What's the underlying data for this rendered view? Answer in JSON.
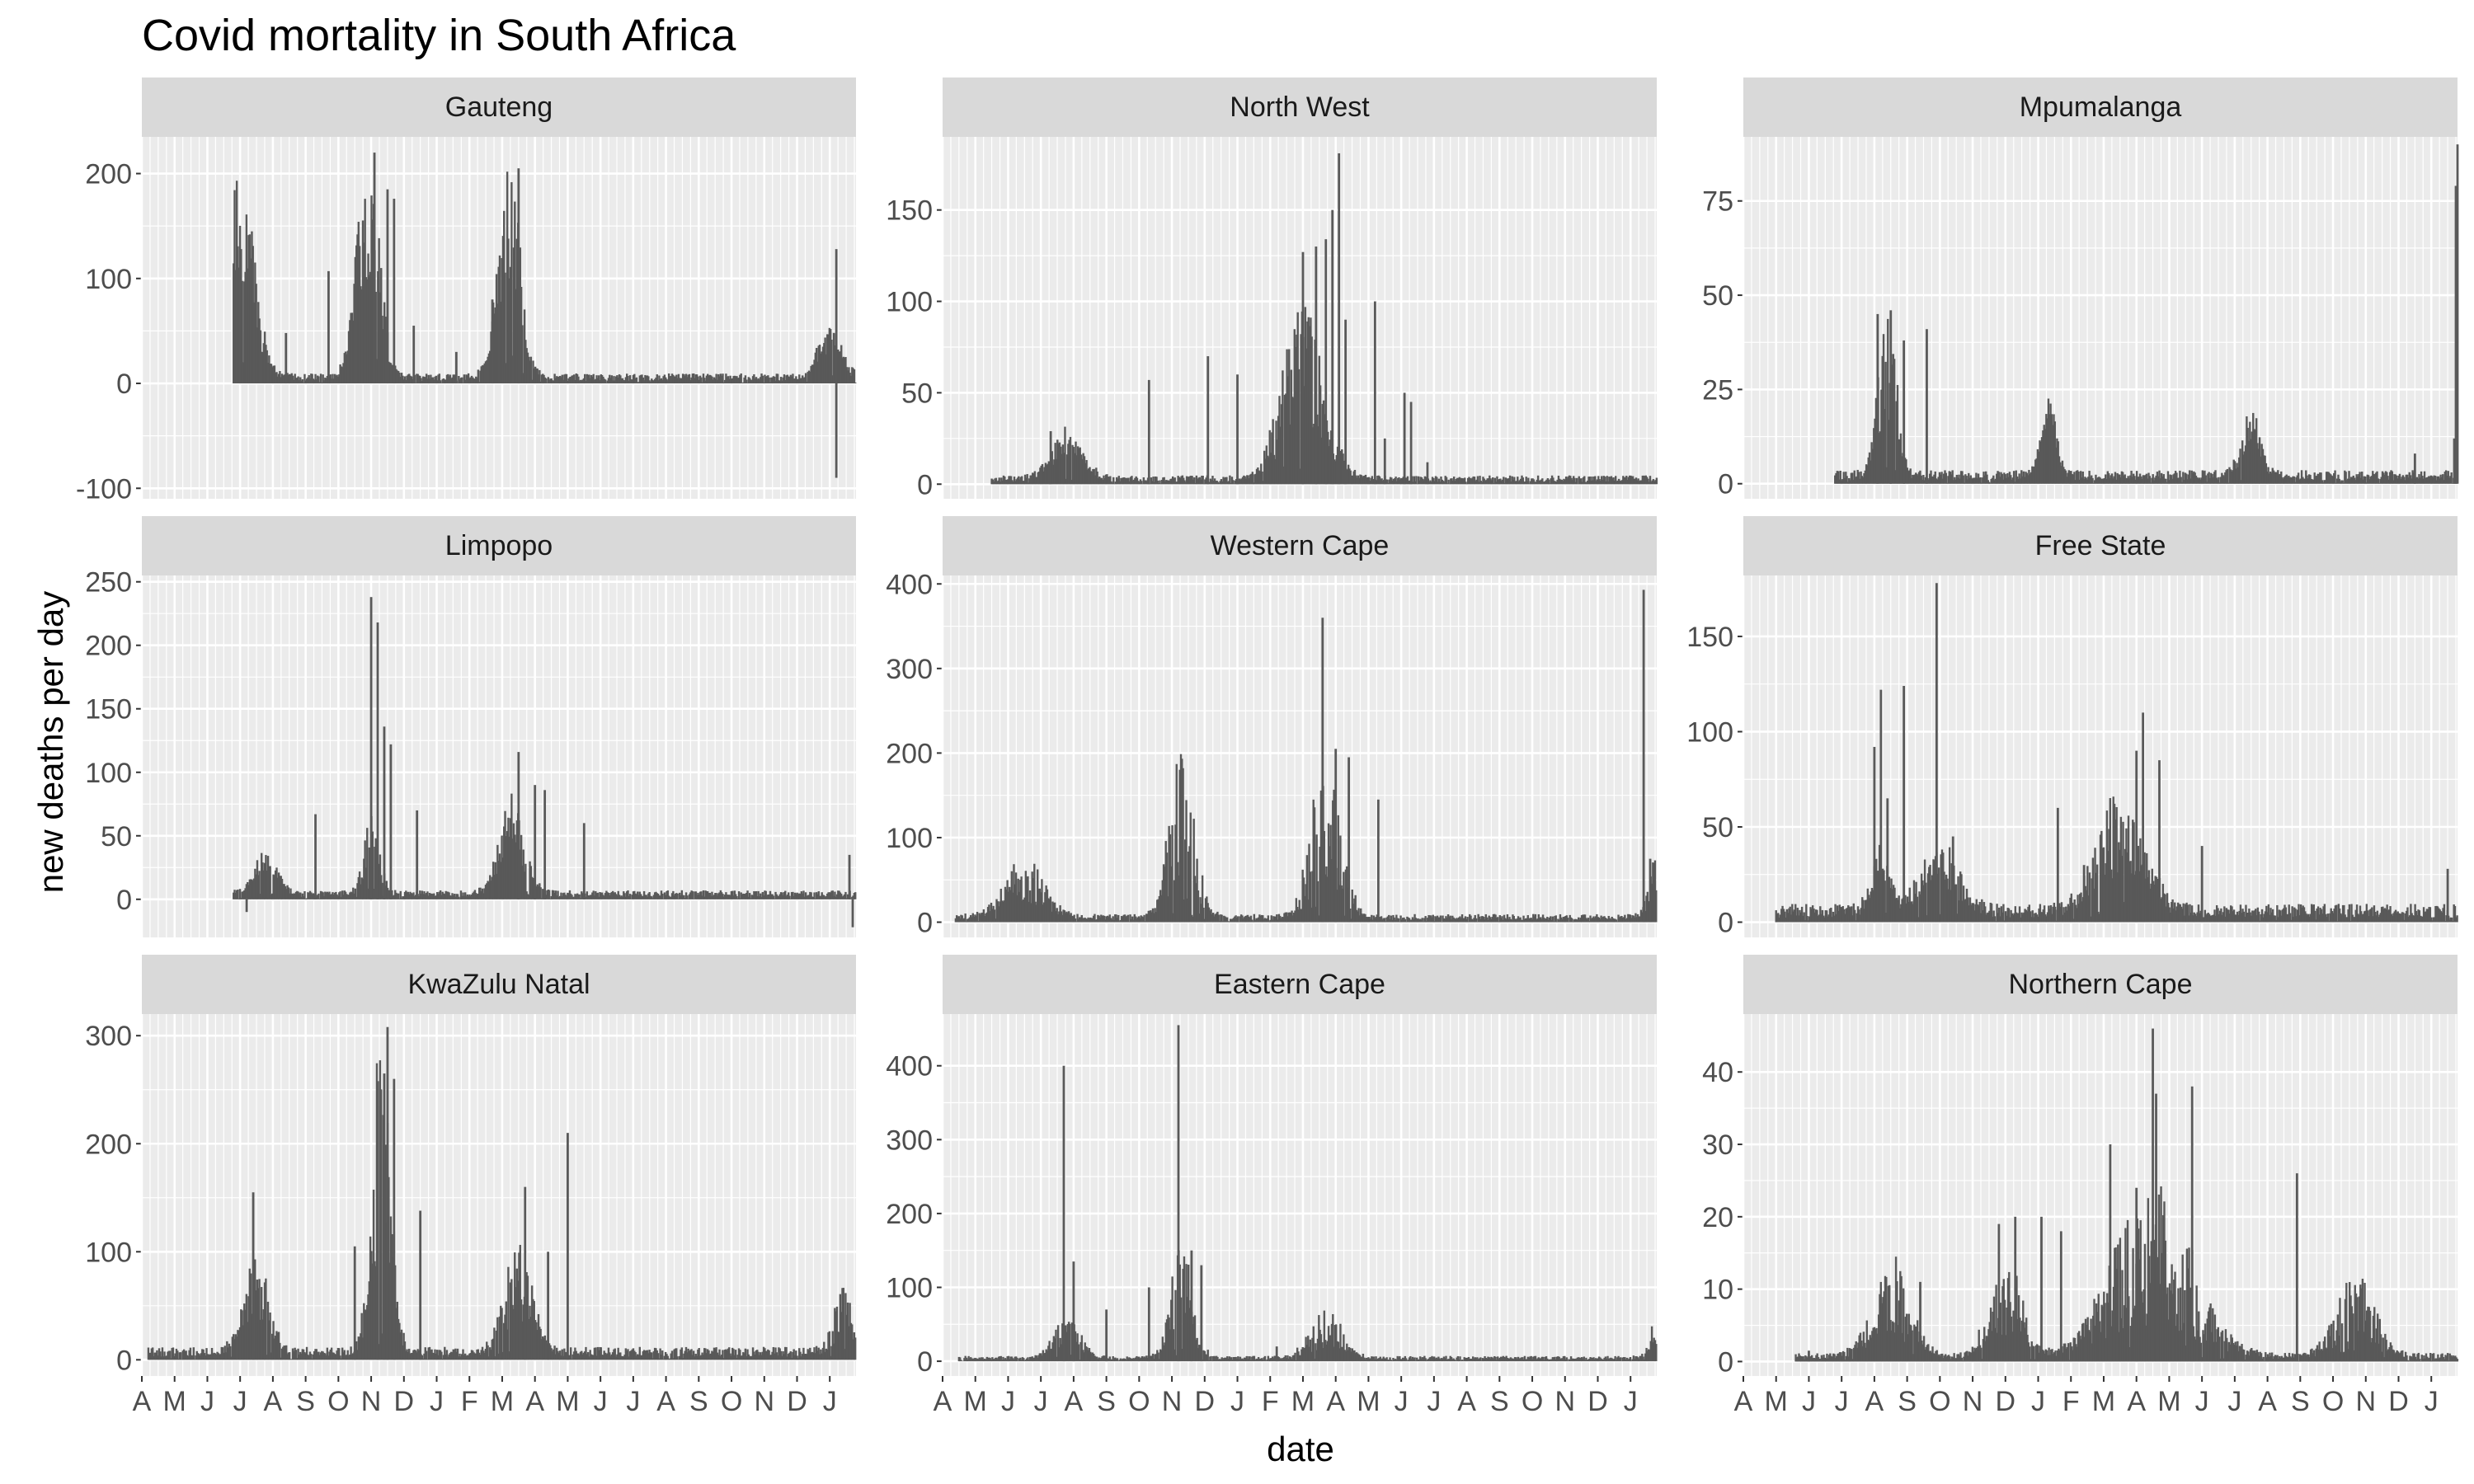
{
  "title": "Covid mortality in South Africa",
  "ylabel": "new deaths per day",
  "xlabel": "date",
  "colors": {
    "panel_bg": "#ebebeb",
    "grid": "#ffffff",
    "strip_bg": "#d9d9d9",
    "bar": "#595959",
    "tick_text": "#4d4d4d"
  },
  "chart_data": {
    "type": "bar",
    "facet": "3x3 grid, free y scales, shared x",
    "x_tick_labels": [
      "A",
      "M",
      "J",
      "J",
      "A",
      "S",
      "O",
      "N",
      "D",
      "J",
      "F",
      "M",
      "A",
      "M",
      "J",
      "J",
      "A",
      "S",
      "O",
      "N",
      "D",
      "J"
    ],
    "x_range_months": [
      0,
      21.8
    ],
    "panels": [
      {
        "name": "Gauteng",
        "yticks": [
          -100,
          0,
          100,
          200
        ],
        "ylim": [
          -110,
          235
        ],
        "peaks": [
          [
            3.0,
            0.9,
            80,
            210
          ],
          [
            6.9,
            0.7,
            95,
            225
          ],
          [
            11.2,
            0.7,
            90,
            210
          ],
          [
            21.0,
            0.7,
            25,
            55
          ]
        ],
        "base": 8,
        "start": 2.8,
        "spikes": [
          [
            21.2,
            -90
          ],
          [
            21.2,
            128
          ],
          [
            7.1,
            220
          ],
          [
            7.5,
            185
          ],
          [
            7.7,
            176
          ],
          [
            8.3,
            55
          ],
          [
            9.6,
            30
          ],
          [
            4.4,
            48
          ],
          [
            5.7,
            107
          ],
          [
            10.7,
            80
          ],
          [
            11.5,
            205
          ]
        ]
      },
      {
        "name": "North West",
        "yticks": [
          0,
          50,
          100,
          150
        ],
        "ylim": [
          -8,
          190
        ],
        "peaks": [
          [
            3.8,
            1.0,
            12,
            28
          ],
          [
            11.0,
            1.3,
            30,
            100
          ]
        ],
        "base": 4,
        "start": 1.5,
        "spikes": [
          [
            11.0,
            127
          ],
          [
            11.4,
            130
          ],
          [
            11.7,
            134
          ],
          [
            11.9,
            150
          ],
          [
            12.1,
            181
          ],
          [
            12.3,
            90
          ],
          [
            13.2,
            100
          ],
          [
            14.1,
            50
          ],
          [
            14.3,
            45
          ],
          [
            9.0,
            60
          ],
          [
            8.1,
            70
          ],
          [
            6.3,
            57
          ],
          [
            3.3,
            29
          ],
          [
            13.5,
            25
          ],
          [
            14.8,
            12
          ]
        ]
      },
      {
        "name": "Mpumalanga",
        "yticks": [
          0,
          25,
          50,
          75
        ],
        "ylim": [
          -4,
          92
        ],
        "peaks": [
          [
            4.4,
            0.6,
            14,
            45
          ],
          [
            9.3,
            0.5,
            12,
            21
          ],
          [
            15.5,
            0.6,
            8,
            18
          ]
        ],
        "base": 3,
        "start": 2.8,
        "spikes": [
          [
            4.1,
            45
          ],
          [
            4.5,
            46
          ],
          [
            4.9,
            38
          ],
          [
            5.6,
            41
          ],
          [
            21.8,
            90
          ],
          [
            21.75,
            79
          ],
          [
            21.7,
            12
          ],
          [
            20.5,
            8
          ]
        ]
      },
      {
        "name": "Limpopo",
        "yticks": [
          0,
          50,
          100,
          150,
          200,
          250
        ],
        "ylim": [
          -30,
          255
        ],
        "peaks": [
          [
            3.8,
            0.7,
            15,
            35
          ],
          [
            7.0,
            0.5,
            20,
            60
          ],
          [
            11.3,
            0.8,
            30,
            80
          ]
        ],
        "base": 6,
        "start": 2.8,
        "spikes": [
          [
            7.0,
            238
          ],
          [
            7.2,
            218
          ],
          [
            7.4,
            136
          ],
          [
            7.6,
            122
          ],
          [
            8.4,
            70
          ],
          [
            5.3,
            67
          ],
          [
            11.5,
            116
          ],
          [
            12.0,
            90
          ],
          [
            12.3,
            86
          ],
          [
            3.2,
            -10
          ],
          [
            21.7,
            -22
          ],
          [
            21.6,
            35
          ],
          [
            13.5,
            60
          ]
        ]
      },
      {
        "name": "Western Cape",
        "yticks": [
          0,
          100,
          200,
          300,
          400
        ],
        "ylim": [
          -18,
          410
        ],
        "peaks": [
          [
            2.5,
            1.3,
            20,
            70
          ],
          [
            7.3,
            0.8,
            45,
            200
          ],
          [
            11.7,
            0.9,
            40,
            210
          ],
          [
            21.8,
            0.5,
            15,
            75
          ]
        ],
        "base": 8,
        "start": 0.4,
        "spikes": [
          [
            11.6,
            360
          ],
          [
            12.0,
            205
          ],
          [
            12.4,
            195
          ],
          [
            21.4,
            393
          ],
          [
            21.6,
            75
          ],
          [
            13.3,
            145
          ]
        ]
      },
      {
        "name": "Free State",
        "yticks": [
          0,
          50,
          100,
          150
        ],
        "ylim": [
          -8,
          182
        ],
        "peaks": [
          [
            4.2,
            0.6,
            12,
            35
          ],
          [
            6.0,
            1.2,
            15,
            35
          ],
          [
            11.5,
            1.5,
            20,
            65
          ]
        ],
        "base": 8,
        "start": 1.0,
        "spikes": [
          [
            4.0,
            92
          ],
          [
            4.2,
            122
          ],
          [
            4.4,
            65
          ],
          [
            4.9,
            124
          ],
          [
            5.9,
            178
          ],
          [
            6.4,
            45
          ],
          [
            9.6,
            60
          ],
          [
            10.4,
            30
          ],
          [
            12.0,
            90
          ],
          [
            12.2,
            110
          ],
          [
            12.7,
            85
          ],
          [
            14.0,
            40
          ],
          [
            21.5,
            28
          ]
        ]
      },
      {
        "name": "KwaZulu Natal",
        "yticks": [
          0,
          100,
          200,
          300
        ],
        "ylim": [
          -15,
          320
        ],
        "peaks": [
          [
            3.5,
            0.8,
            25,
            90
          ],
          [
            7.3,
            0.6,
            70,
            300
          ],
          [
            11.5,
            0.9,
            30,
            100
          ],
          [
            21.4,
            0.6,
            15,
            60
          ]
        ],
        "base": 10,
        "start": 0.2,
        "spikes": [
          [
            3.4,
            155
          ],
          [
            6.5,
            105
          ],
          [
            7.2,
            235
          ],
          [
            7.4,
            265
          ],
          [
            7.5,
            308
          ],
          [
            7.7,
            260
          ],
          [
            8.5,
            138
          ],
          [
            11.7,
            160
          ],
          [
            13.0,
            210
          ],
          [
            12.4,
            100
          ]
        ]
      },
      {
        "name": "Eastern Cape",
        "yticks": [
          0,
          100,
          200,
          300,
          400
        ],
        "ylim": [
          -20,
          470
        ],
        "peaks": [
          [
            3.8,
            0.8,
            20,
            60
          ],
          [
            7.3,
            0.7,
            35,
            160
          ],
          [
            11.7,
            1.0,
            12,
            70
          ],
          [
            21.8,
            0.5,
            10,
            70
          ]
        ],
        "base": 6,
        "start": 0.5,
        "spikes": [
          [
            3.7,
            400
          ],
          [
            4.0,
            135
          ],
          [
            7.2,
            455
          ],
          [
            7.6,
            150
          ],
          [
            7.9,
            130
          ],
          [
            6.3,
            100
          ],
          [
            5.0,
            70
          ],
          [
            10.2,
            20
          ]
        ]
      },
      {
        "name": "Northern Cape",
        "yticks": [
          0,
          10,
          20,
          30,
          40
        ],
        "ylim": [
          -2,
          48
        ],
        "peaks": [
          [
            4.5,
            1.2,
            3,
            14
          ],
          [
            8.0,
            1.0,
            3,
            15
          ],
          [
            12.5,
            2.5,
            4,
            24
          ],
          [
            18.7,
            1.2,
            2,
            12
          ]
        ],
        "base": 1,
        "start": 1.6,
        "spikes": [
          [
            12.5,
            46
          ],
          [
            12.6,
            37
          ],
          [
            13.7,
            38
          ],
          [
            11.2,
            30
          ],
          [
            12.0,
            24
          ],
          [
            16.9,
            26
          ],
          [
            8.3,
            20
          ],
          [
            7.8,
            19
          ],
          [
            9.1,
            20
          ],
          [
            9.7,
            18
          ],
          [
            5.4,
            11
          ],
          [
            2.0,
            1.5
          ]
        ]
      }
    ]
  }
}
